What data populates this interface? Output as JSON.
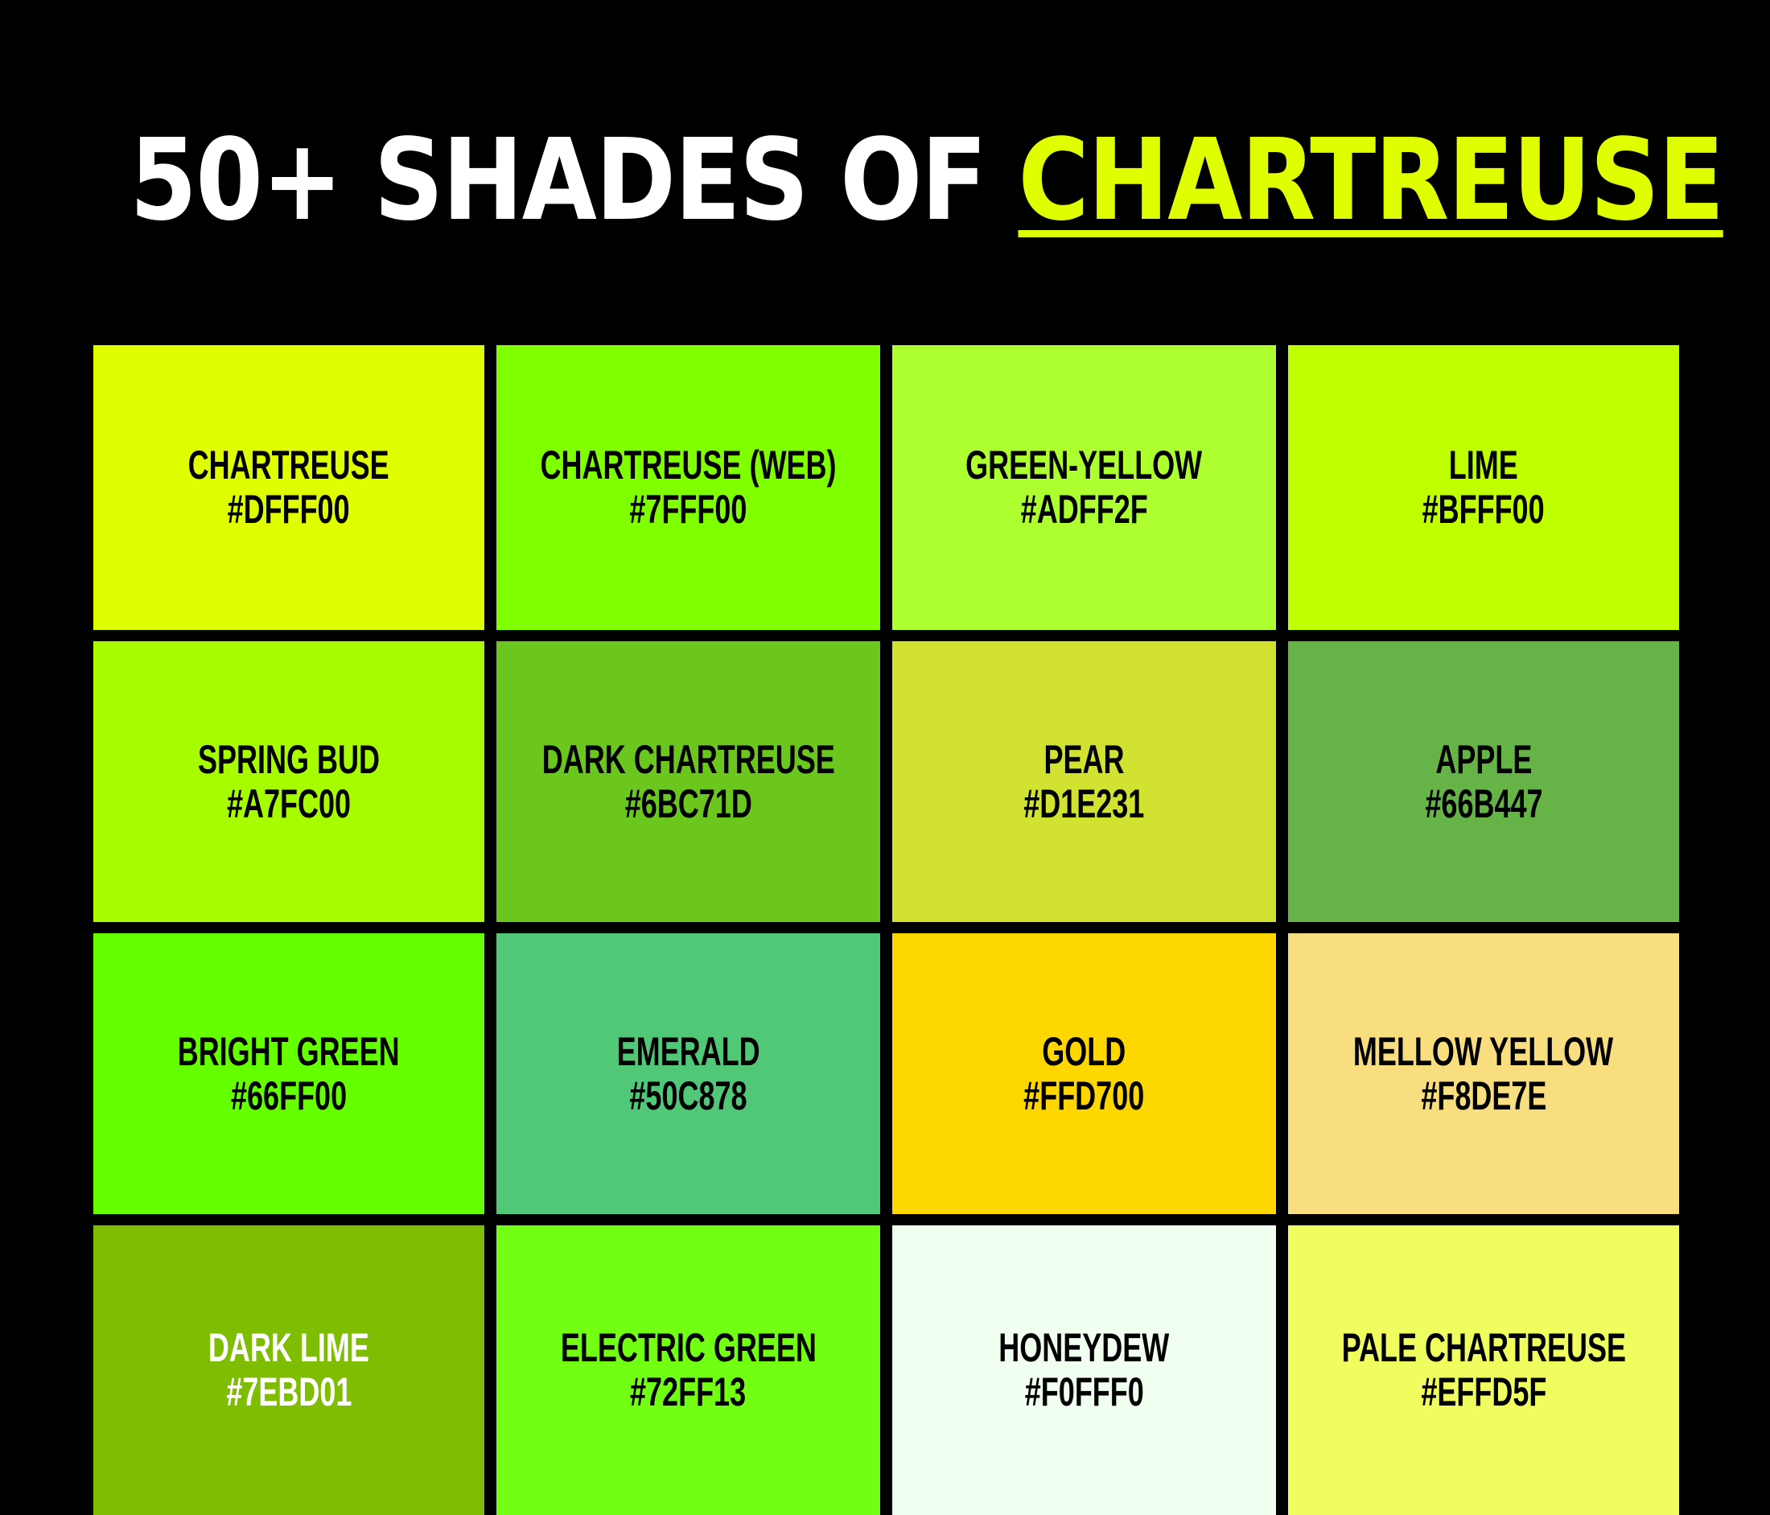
{
  "title": {
    "prefix": "50+ SHADES OF ",
    "highlight": "CHARTREUSE",
    "accent_color": "#DFFF00"
  },
  "swatches": [
    {
      "name": "CHARTREUSE",
      "hex": "#DFFF00"
    },
    {
      "name": "CHARTREUSE (WEB)",
      "hex": "#7FFF00"
    },
    {
      "name": "GREEN-YELLOW",
      "hex": "#ADFF2F"
    },
    {
      "name": "LIME",
      "hex": "#BFFF00"
    },
    {
      "name": "SPRING BUD",
      "hex": "#A7FC00"
    },
    {
      "name": "DARK CHARTREUSE",
      "hex": "#6BC71D"
    },
    {
      "name": "PEAR",
      "hex": "#D1E231"
    },
    {
      "name": "APPLE",
      "hex": "#66B447"
    },
    {
      "name": "BRIGHT GREEN",
      "hex": "#66FF00"
    },
    {
      "name": "EMERALD",
      "hex": "#50C878"
    },
    {
      "name": "GOLD",
      "hex": "#FFD700"
    },
    {
      "name": "MELLOW YELLOW",
      "hex": "#F8DE7E"
    },
    {
      "name": "DARK LIME",
      "hex": "#7EBD01",
      "text_color": "#FFFFFF"
    },
    {
      "name": "ELECTRIC GREEN",
      "hex": "#72FF13"
    },
    {
      "name": "HONEYDEW",
      "hex": "#F0FFF0"
    },
    {
      "name": "PALE CHARTREUSE",
      "hex": "#EFFD5F"
    }
  ]
}
